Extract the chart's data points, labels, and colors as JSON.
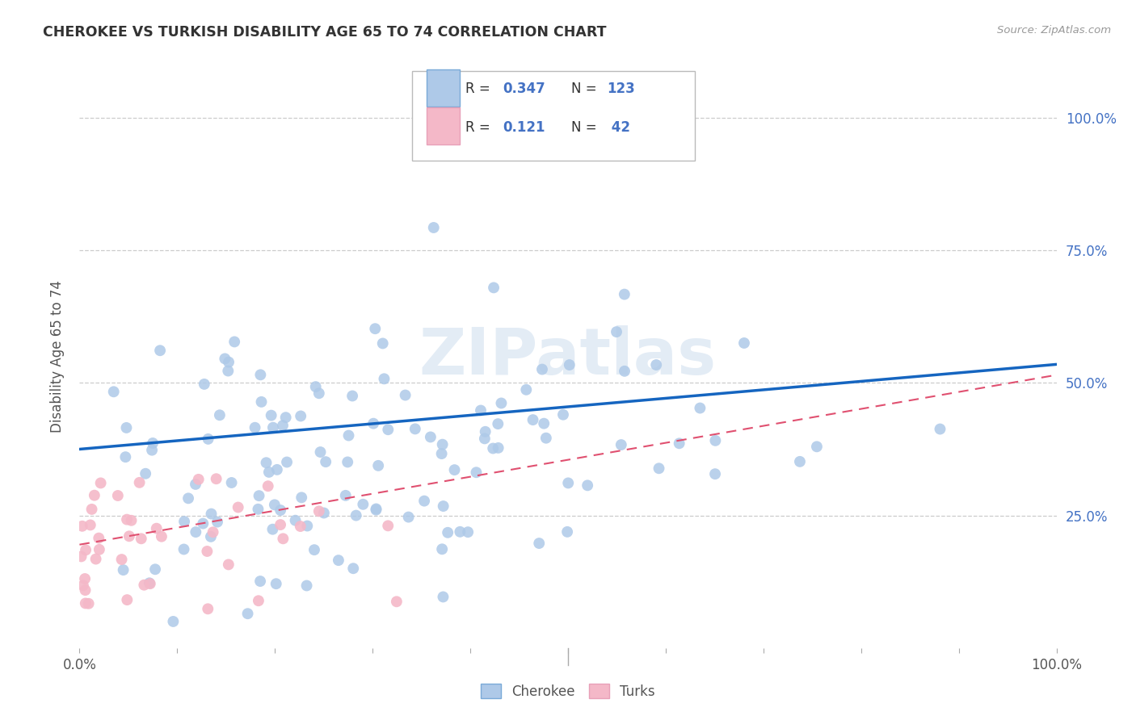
{
  "title": "CHEROKEE VS TURKISH DISABILITY AGE 65 TO 74 CORRELATION CHART",
  "source": "Source: ZipAtlas.com",
  "ylabel": "Disability Age 65 to 74",
  "ytick_labels": [
    "25.0%",
    "50.0%",
    "75.0%",
    "100.0%"
  ],
  "watermark": "ZIPatlas",
  "legend_cherokee": "Cherokee",
  "legend_turks": "Turks",
  "cherokee_R": "0.347",
  "cherokee_N": "123",
  "turks_R": "0.121",
  "turks_N": "42",
  "cherokee_color": "#aec9e8",
  "cherokee_edge_color": "#aec9e8",
  "cherokee_line_color": "#1565c0",
  "turks_color": "#f4b8c8",
  "turks_edge_color": "#f4b8c8",
  "turks_line_color": "#e05070",
  "background_color": "#ffffff",
  "grid_color": "#cccccc",
  "right_tick_color": "#4472c4",
  "xlim": [
    0.0,
    1.0
  ],
  "ylim": [
    0.0,
    1.1
  ],
  "cherokee_line_x0": 0.0,
  "cherokee_line_x1": 1.0,
  "cherokee_line_y0": 0.375,
  "cherokee_line_y1": 0.535,
  "turks_line_x0": 0.0,
  "turks_line_x1": 1.0,
  "turks_line_y0": 0.195,
  "turks_line_y1": 0.515
}
